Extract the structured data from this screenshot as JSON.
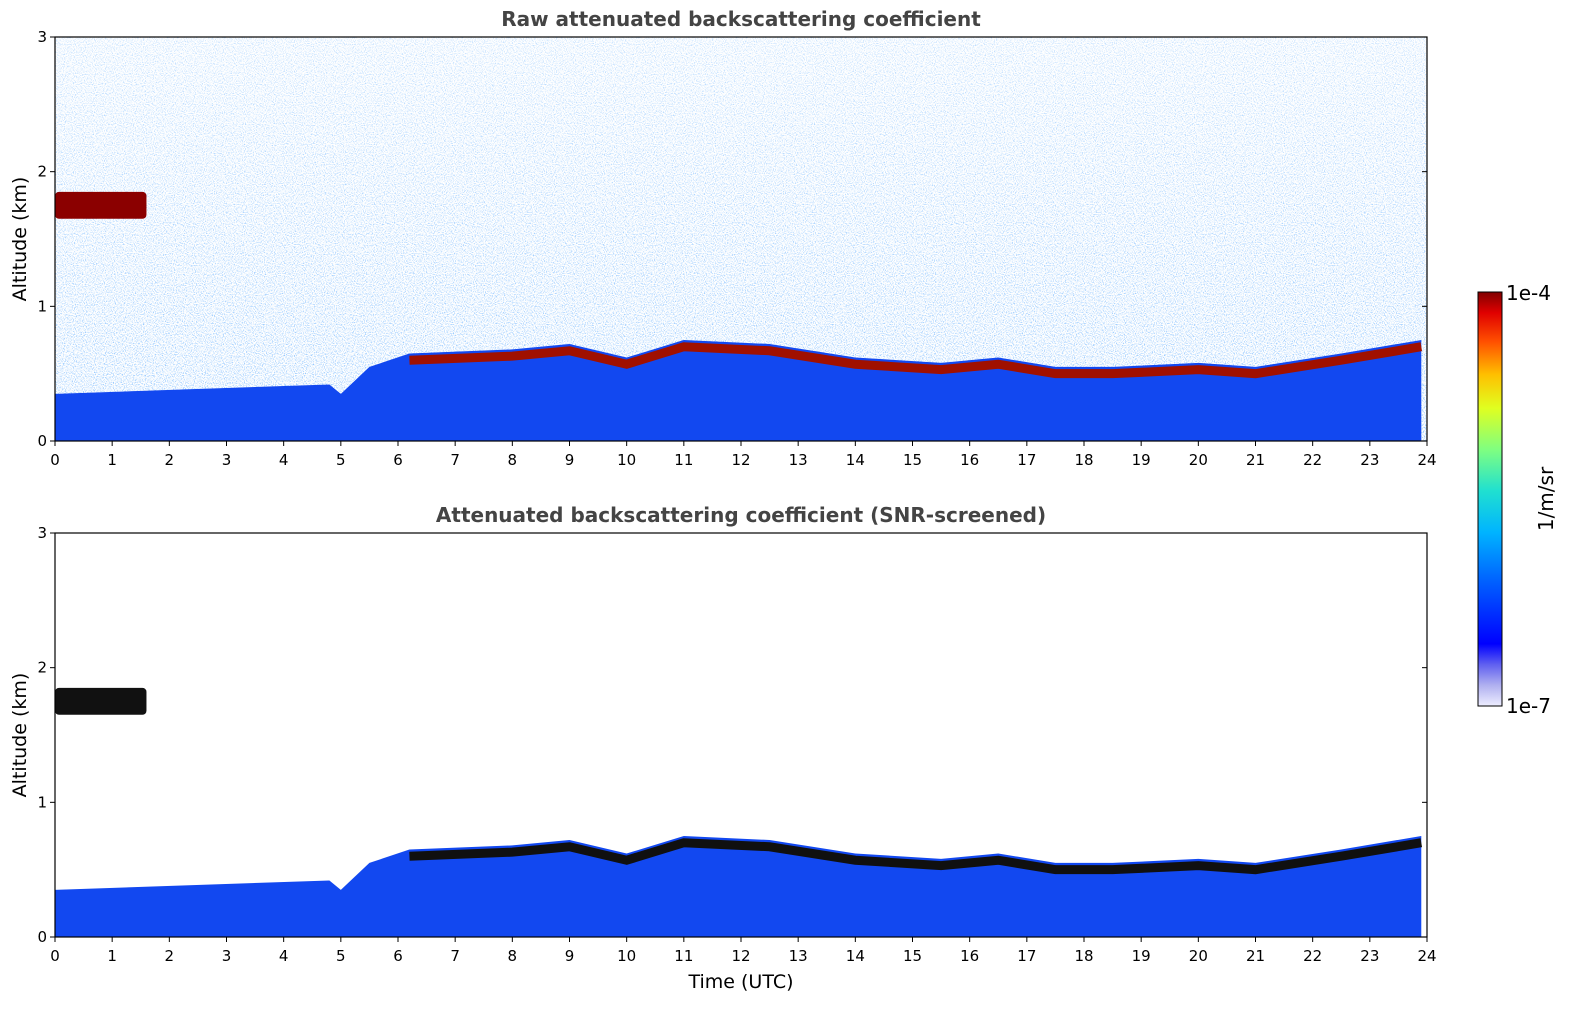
{
  "chart_data": [
    {
      "type": "heatmap",
      "title": "Raw attenuated backscattering coefficient",
      "xlabel": "",
      "ylabel": "Altitude (km)",
      "xlim": [
        0,
        24
      ],
      "ylim": [
        0,
        3
      ],
      "x_ticks": [
        "0",
        "1",
        "2",
        "3",
        "4",
        "5",
        "6",
        "7",
        "8",
        "9",
        "10",
        "11",
        "12",
        "13",
        "14",
        "15",
        "16",
        "17",
        "18",
        "19",
        "20",
        "21",
        "22",
        "23",
        "24"
      ],
      "y_ticks": [
        "0",
        "1",
        "2",
        "3"
      ],
      "colormap": "jet",
      "color_scale": "log",
      "features": {
        "boundary_layer_top_km": [
          {
            "time": 0,
            "alt": 0.35
          },
          {
            "time": 4.8,
            "alt": 0.42
          },
          {
            "time": 5.0,
            "alt": 0.35
          },
          {
            "time": 5.5,
            "alt": 0.55
          },
          {
            "time": 6.2,
            "alt": 0.65
          },
          {
            "time": 8.0,
            "alt": 0.68
          },
          {
            "time": 9.0,
            "alt": 0.72
          },
          {
            "time": 10.0,
            "alt": 0.62
          },
          {
            "time": 11.0,
            "alt": 0.75
          },
          {
            "time": 12.5,
            "alt": 0.72
          },
          {
            "time": 14.0,
            "alt": 0.62
          },
          {
            "time": 15.5,
            "alt": 0.58
          },
          {
            "time": 16.5,
            "alt": 0.62
          },
          {
            "time": 17.5,
            "alt": 0.55
          },
          {
            "time": 18.5,
            "alt": 0.55
          },
          {
            "time": 20.0,
            "alt": 0.58
          },
          {
            "time": 21.0,
            "alt": 0.55
          },
          {
            "time": 22.5,
            "alt": 0.65
          },
          {
            "time": 23.9,
            "alt": 0.75
          }
        ],
        "cloud_layer": {
          "time_start": 0,
          "time_end": 1.6,
          "alt_low": 1.65,
          "alt_high": 1.85
        }
      }
    },
    {
      "type": "heatmap",
      "title": "Attenuated backscattering coefficient (SNR-screened)",
      "xlabel": "Time (UTC)",
      "ylabel": "Altitude (km)",
      "xlim": [
        0,
        24
      ],
      "ylim": [
        0,
        3
      ],
      "x_ticks": [
        "0",
        "1",
        "2",
        "3",
        "4",
        "5",
        "6",
        "7",
        "8",
        "9",
        "10",
        "11",
        "12",
        "13",
        "14",
        "15",
        "16",
        "17",
        "18",
        "19",
        "20",
        "21",
        "22",
        "23",
        "24"
      ],
      "y_ticks": [
        "0",
        "1",
        "2",
        "3"
      ],
      "colormap": "jet",
      "color_scale": "log"
    }
  ],
  "colorbar": {
    "max_label": "1e-4",
    "min_label": "1e-7",
    "unit_label": "1/m/sr",
    "min": 1e-07,
    "max": 0.0001
  }
}
